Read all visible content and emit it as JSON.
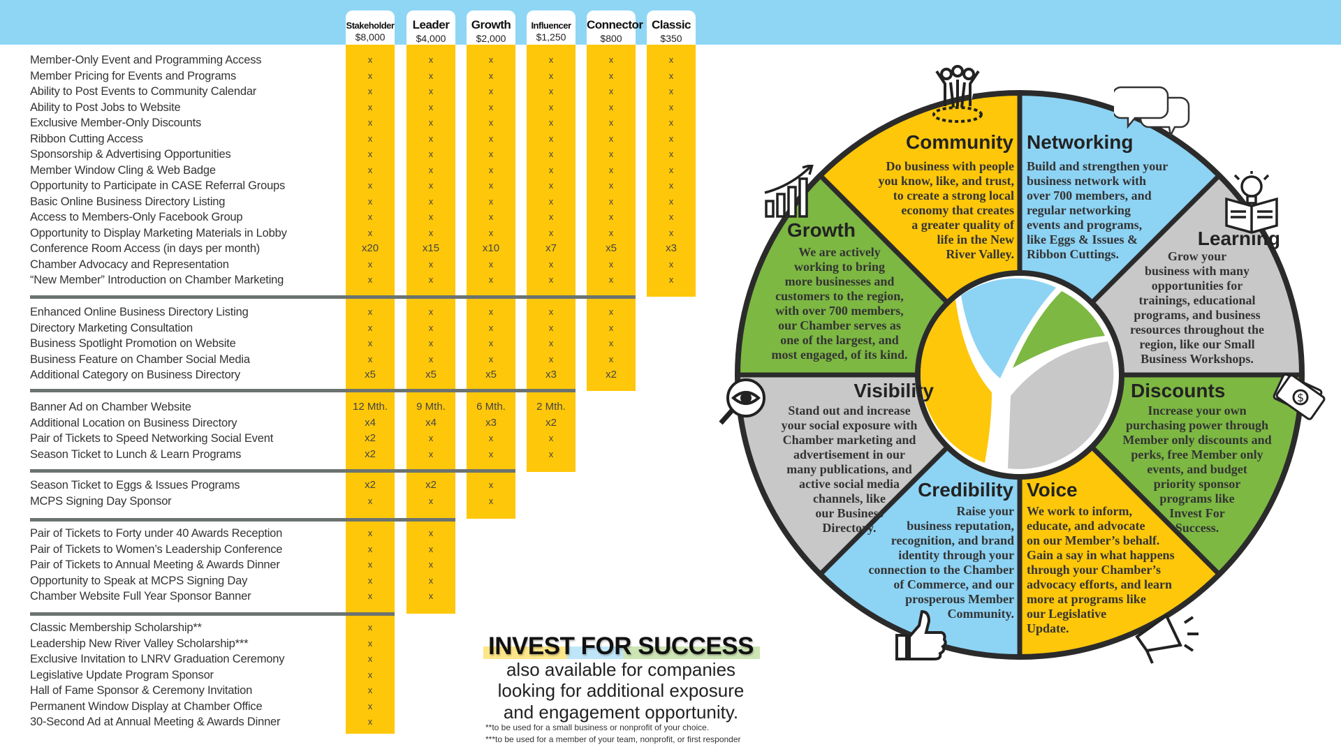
{
  "tiers": [
    {
      "name": "Stakeholder",
      "price": "$8,000"
    },
    {
      "name": "Leader",
      "price": "$4,000"
    },
    {
      "name": "Growth",
      "price": "$2,000"
    },
    {
      "name": "Influencer",
      "price": "$1,250"
    },
    {
      "name": "Connector",
      "price": "$800"
    },
    {
      "name": "Classic",
      "price": "$350"
    }
  ],
  "sections": [
    {
      "rows": [
        {
          "label": "Member-Only Event and Programming Access",
          "values": [
            "x",
            "x",
            "x",
            "x",
            "x",
            "x"
          ]
        },
        {
          "label": "Member Pricing for Events and Programs",
          "values": [
            "x",
            "x",
            "x",
            "x",
            "x",
            "x"
          ]
        },
        {
          "label": "Ability to Post Events to Community Calendar",
          "values": [
            "x",
            "x",
            "x",
            "x",
            "x",
            "x"
          ]
        },
        {
          "label": "Ability to Post Jobs to Website",
          "values": [
            "x",
            "x",
            "x",
            "x",
            "x",
            "x"
          ]
        },
        {
          "label": "Exclusive Member-Only Discounts",
          "values": [
            "x",
            "x",
            "x",
            "x",
            "x",
            "x"
          ]
        },
        {
          "label": "Ribbon Cutting Access",
          "values": [
            "x",
            "x",
            "x",
            "x",
            "x",
            "x"
          ]
        },
        {
          "label": "Sponsorship & Advertising Opportunities",
          "values": [
            "x",
            "x",
            "x",
            "x",
            "x",
            "x"
          ]
        },
        {
          "label": "Member Window Cling & Web Badge",
          "values": [
            "x",
            "x",
            "x",
            "x",
            "x",
            "x"
          ]
        },
        {
          "label": "Opportunity to Participate in CASE Referral Groups",
          "values": [
            "x",
            "x",
            "x",
            "x",
            "x",
            "x"
          ]
        },
        {
          "label": "Basic Online Business Directory Listing",
          "values": [
            "x",
            "x",
            "x",
            "x",
            "x",
            "x"
          ]
        },
        {
          "label": "Access to Members-Only Facebook Group",
          "values": [
            "x",
            "x",
            "x",
            "x",
            "x",
            "x"
          ]
        },
        {
          "label": "Opportunity to Display Marketing Materials in Lobby",
          "values": [
            "x",
            "x",
            "x",
            "x",
            "x",
            "x"
          ]
        },
        {
          "label": "Conference Room Access (in days per month)",
          "values": [
            "x20",
            "x15",
            "x10",
            "x7",
            "x5",
            "x3"
          ]
        },
        {
          "label": "Chamber Advocacy and Representation",
          "values": [
            "x",
            "x",
            "x",
            "x",
            "x",
            "x"
          ]
        },
        {
          "label": "“New Member” Introduction on Chamber Marketing",
          "values": [
            "x",
            "x",
            "x",
            "x",
            "x",
            "x"
          ]
        }
      ]
    },
    {
      "rows": [
        {
          "label": "Enhanced Online Business Directory Listing",
          "values": [
            "x",
            "x",
            "x",
            "x",
            "x"
          ]
        },
        {
          "label": "Directory Marketing Consultation",
          "values": [
            "x",
            "x",
            "x",
            "x",
            "x"
          ]
        },
        {
          "label": "Business Spotlight Promotion on Website",
          "values": [
            "x",
            "x",
            "x",
            "x",
            "x"
          ]
        },
        {
          "label": "Business Feature on Chamber Social Media",
          "values": [
            "x",
            "x",
            "x",
            "x",
            "x"
          ]
        },
        {
          "label": "Additional Category on Business Directory",
          "values": [
            "x5",
            "x5",
            "x5",
            "x3",
            "x2"
          ]
        }
      ]
    },
    {
      "rows": [
        {
          "label": "Banner Ad on Chamber Website",
          "values": [
            "12 Mth.",
            "9 Mth.",
            "6 Mth.",
            "2 Mth."
          ]
        },
        {
          "label": "Additional Location on Business Directory",
          "values": [
            "x4",
            "x4",
            "x3",
            "x2"
          ]
        },
        {
          "label": "Pair of Tickets to Speed Networking Social Event",
          "values": [
            "x2",
            "x",
            "x",
            "x"
          ]
        },
        {
          "label": "Season Ticket to Lunch & Learn Programs",
          "values": [
            "x2",
            "x",
            "x",
            "x"
          ]
        }
      ]
    },
    {
      "rows": [
        {
          "label": "Season Ticket to Eggs & Issues Programs",
          "values": [
            "x2",
            "x2",
            "x"
          ]
        },
        {
          "label": "MCPS Signing Day Sponsor",
          "values": [
            "x",
            "x",
            "x"
          ]
        }
      ]
    },
    {
      "rows": [
        {
          "label": "Pair of Tickets to Forty under 40 Awards Reception",
          "values": [
            "x",
            "x"
          ]
        },
        {
          "label": "Pair of Tickets to Women’s Leadership Conference",
          "values": [
            "x",
            "x"
          ]
        },
        {
          "label": "Pair of Tickets to Annual Meeting & Awards Dinner",
          "values": [
            "x",
            "x"
          ]
        },
        {
          "label": "Opportunity to Speak at MCPS Signing Day",
          "values": [
            "x",
            "x"
          ]
        },
        {
          "label": "Chamber Website Full Year Sponsor Banner",
          "values": [
            "x",
            "x"
          ]
        }
      ]
    },
    {
      "rows": [
        {
          "label": "Classic Membership Scholarship**",
          "values": [
            "x"
          ]
        },
        {
          "label": "Leadership New River Valley Scholarship***",
          "values": [
            "x"
          ]
        },
        {
          "label": "Exclusive Invitation to LNRV Graduation Ceremony",
          "values": [
            "x"
          ]
        },
        {
          "label": "Legislative Update Program Sponsor",
          "values": [
            "x"
          ]
        },
        {
          "label": "Hall of Fame Sponsor & Ceremony Invitation",
          "values": [
            "x"
          ]
        },
        {
          "label": "Permanent Window Display at Chamber Office",
          "values": [
            "x"
          ]
        },
        {
          "label": "30-Second Ad at Annual Meeting & Awards Dinner",
          "values": [
            "x"
          ]
        }
      ]
    }
  ],
  "invest": {
    "title": "INVEST FOR SUCCESS",
    "lines": [
      "also available for companies",
      "looking for additional exposure",
      "and engagement opportunity."
    ],
    "footnotes": [
      "**to be used for a small business or nonprofit of your choice.",
      "***to be used for a member of your team, nonprofit, or first responder"
    ]
  },
  "wheel": {
    "segments": [
      {
        "title": "Networking",
        "color": "#8dd3f4",
        "icon": "speech-bubbles-icon",
        "body": "Build and strengthen your\nbusiness network with\nover 700 members, and\nregular networking\nevents and programs,\nlike Eggs & Issues &\nRibbon Cuttings."
      },
      {
        "title": "Learning",
        "color": "#c8c8c8",
        "icon": "lightbulb-book-icon",
        "body": "Grow your\nbusiness with many\nopportunities for\ntrainings, educational\nprograms, and business\nresources throughout the\nregion, like our Small\nBusiness Workshops."
      },
      {
        "title": "Discounts",
        "color": "#7db843",
        "icon": "money-icon",
        "body": "Increase your own\npurchasing power through\nMember only discounts and\nperks, free Member only\nevents, and budget\npriority sponsor\nprograms like\nInvest For\nSuccess."
      },
      {
        "title": "Voice",
        "color": "#fec70a",
        "icon": "megaphone-icon",
        "body": "We work to inform,\neducate, and advocate\non our Member’s behalf.\nGain a say in what happens\nthrough your Chamber’s\nadvocacy efforts, and learn\nmore at programs like\nour Legislative\nUpdate."
      },
      {
        "title": "Credibility",
        "color": "#8dd3f4",
        "icon": "thumbs-up-icon",
        "body": "Raise your\nbusiness reputation,\nrecognition, and brand\nidentity through your\nconnection to the Chamber\nof Commerce, and our\nprosperous Member\nCommunity."
      },
      {
        "title": "Visibility",
        "color": "#c8c8c8",
        "icon": "magnifier-eye-icon",
        "body": "Stand out and increase\nyour social exposure with\nChamber marketing and\nadvertisement in our\nmany publications, and\nactive social media\nchannels, like\nour Business\nDirectory."
      },
      {
        "title": "Growth",
        "color": "#7db843",
        "icon": "growth-chart-icon",
        "body": "We are actively\nworking to bring\nmore businesses and\ncustomers to the region,\nwith over 700 members,\nour Chamber serves as\none of the largest, and\nmost engaged, of its kind."
      },
      {
        "title": "Community",
        "color": "#fec70a",
        "icon": "people-group-icon",
        "body": "Do business with people\nyou know, like, and trust,\nto create a strong local\neconomy that creates\na greater quality of\nlife in the New\nRiver Valley."
      }
    ],
    "logo_colors": [
      "#fec70a",
      "#8dd3f4",
      "#7db843",
      "#c8c8c8"
    ]
  },
  "colors": {
    "header_band": "#8fd6f5",
    "tier_column": "#fec70a",
    "divider": "#6b7370",
    "wheel_outline": "#2b2b2b"
  }
}
